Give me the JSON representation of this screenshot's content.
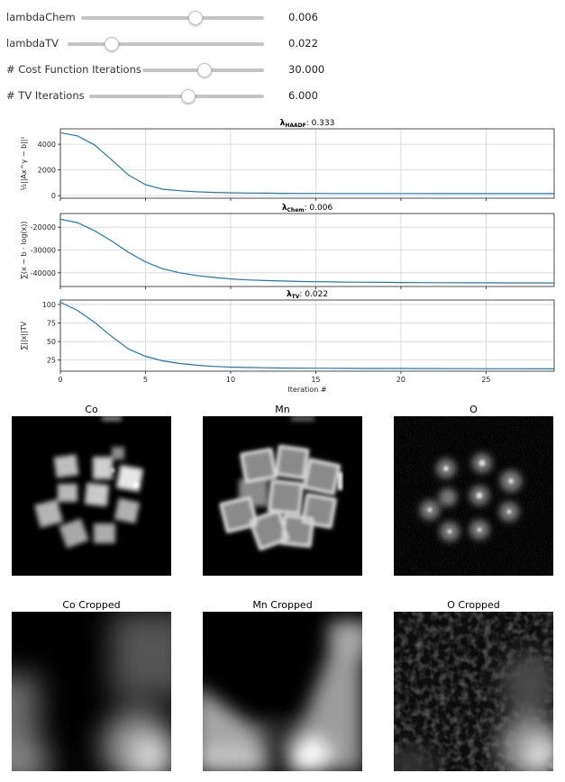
{
  "controls": {
    "sliders": [
      {
        "label": "lambdaChem",
        "value": "0.006",
        "level": 0.62
      },
      {
        "label": "lambdaTV",
        "value": "0.022",
        "level": 0.22
      },
      {
        "label": "# Cost Function Iterations",
        "value": "30.000",
        "level": 0.5
      },
      {
        "label": "# TV Iterations",
        "value": "6.000",
        "level": 0.56
      }
    ]
  },
  "chart_data": [
    {
      "type": "line",
      "title_symbol": "λ",
      "title_sub": "HAADF",
      "title_value": ": 0.333",
      "ylabel": "½||Ax^γ − b||²",
      "yticks": [
        0,
        2000,
        4000
      ],
      "ylim": [
        -200,
        5200
      ],
      "xlim": [
        0,
        29
      ],
      "xticks": [
        0,
        5,
        10,
        15,
        20,
        25
      ],
      "x": [
        0,
        1,
        2,
        3,
        4,
        5,
        6,
        7,
        8,
        9,
        10,
        11,
        12,
        13,
        14,
        15,
        16,
        17,
        18,
        19,
        20,
        21,
        22,
        23,
        24,
        25,
        26,
        27,
        28,
        29
      ],
      "y": [
        4900,
        4650,
        3950,
        2800,
        1600,
        850,
        500,
        380,
        300,
        250,
        220,
        200,
        190,
        180,
        175,
        170,
        168,
        166,
        165,
        164,
        163,
        162,
        161,
        160,
        160,
        159,
        159,
        158,
        158,
        158
      ]
    },
    {
      "type": "line",
      "title_symbol": "λ",
      "title_sub": "Chem",
      "title_value": ": 0.006",
      "ylabel": "∑(x − b · log(x))",
      "yticks": [
        -20000,
        -30000,
        -40000
      ],
      "ylim": [
        -46000,
        -14000
      ],
      "xlim": [
        0,
        29
      ],
      "xticks": [
        0,
        5,
        10,
        15,
        20,
        25
      ],
      "x": [
        0,
        1,
        2,
        3,
        4,
        5,
        6,
        7,
        8,
        9,
        10,
        11,
        12,
        13,
        14,
        15,
        16,
        17,
        18,
        19,
        20,
        21,
        22,
        23,
        24,
        25,
        26,
        27,
        28,
        29
      ],
      "y": [
        -16500,
        -18000,
        -21500,
        -26000,
        -31000,
        -35200,
        -38200,
        -40000,
        -41200,
        -42000,
        -42700,
        -43100,
        -43400,
        -43600,
        -43800,
        -43900,
        -44000,
        -44100,
        -44150,
        -44200,
        -44250,
        -44300,
        -44330,
        -44360,
        -44380,
        -44400,
        -44410,
        -44420,
        -44430,
        -44440
      ]
    },
    {
      "type": "line",
      "title_symbol": "λ",
      "title_sub": "TV",
      "title_value": ": 0.022",
      "ylabel": "∑||x||TV",
      "xlabel": "Iteration #",
      "yticks": [
        25,
        50,
        75,
        100
      ],
      "ylim": [
        10,
        106
      ],
      "xlim": [
        0,
        29
      ],
      "xticks": [
        0,
        5,
        10,
        15,
        20,
        25
      ],
      "x": [
        0,
        1,
        2,
        3,
        4,
        5,
        6,
        7,
        8,
        9,
        10,
        11,
        12,
        13,
        14,
        15,
        16,
        17,
        18,
        19,
        20,
        21,
        22,
        23,
        24,
        25,
        26,
        27,
        28,
        29
      ],
      "y": [
        103,
        92,
        76,
        57,
        40,
        30,
        24,
        20.5,
        18,
        16.5,
        15.5,
        15,
        14.6,
        14.3,
        14.1,
        14,
        13.9,
        13.8,
        13.7,
        13.6,
        13.6,
        13.5,
        13.5,
        13.4,
        13.4,
        13.3,
        13.3,
        13.3,
        13.2,
        13.2
      ]
    }
  ],
  "images": {
    "maps": [
      {
        "title": "Co"
      },
      {
        "title": "Mn"
      },
      {
        "title": "O"
      }
    ],
    "crops": [
      {
        "title": "Co Cropped"
      },
      {
        "title": "Mn Cropped"
      },
      {
        "title": "O Cropped"
      }
    ]
  },
  "colors": {
    "line": "#1f77b4",
    "grid": "#d3d3d3",
    "slider_track": "#c4c4c4"
  }
}
